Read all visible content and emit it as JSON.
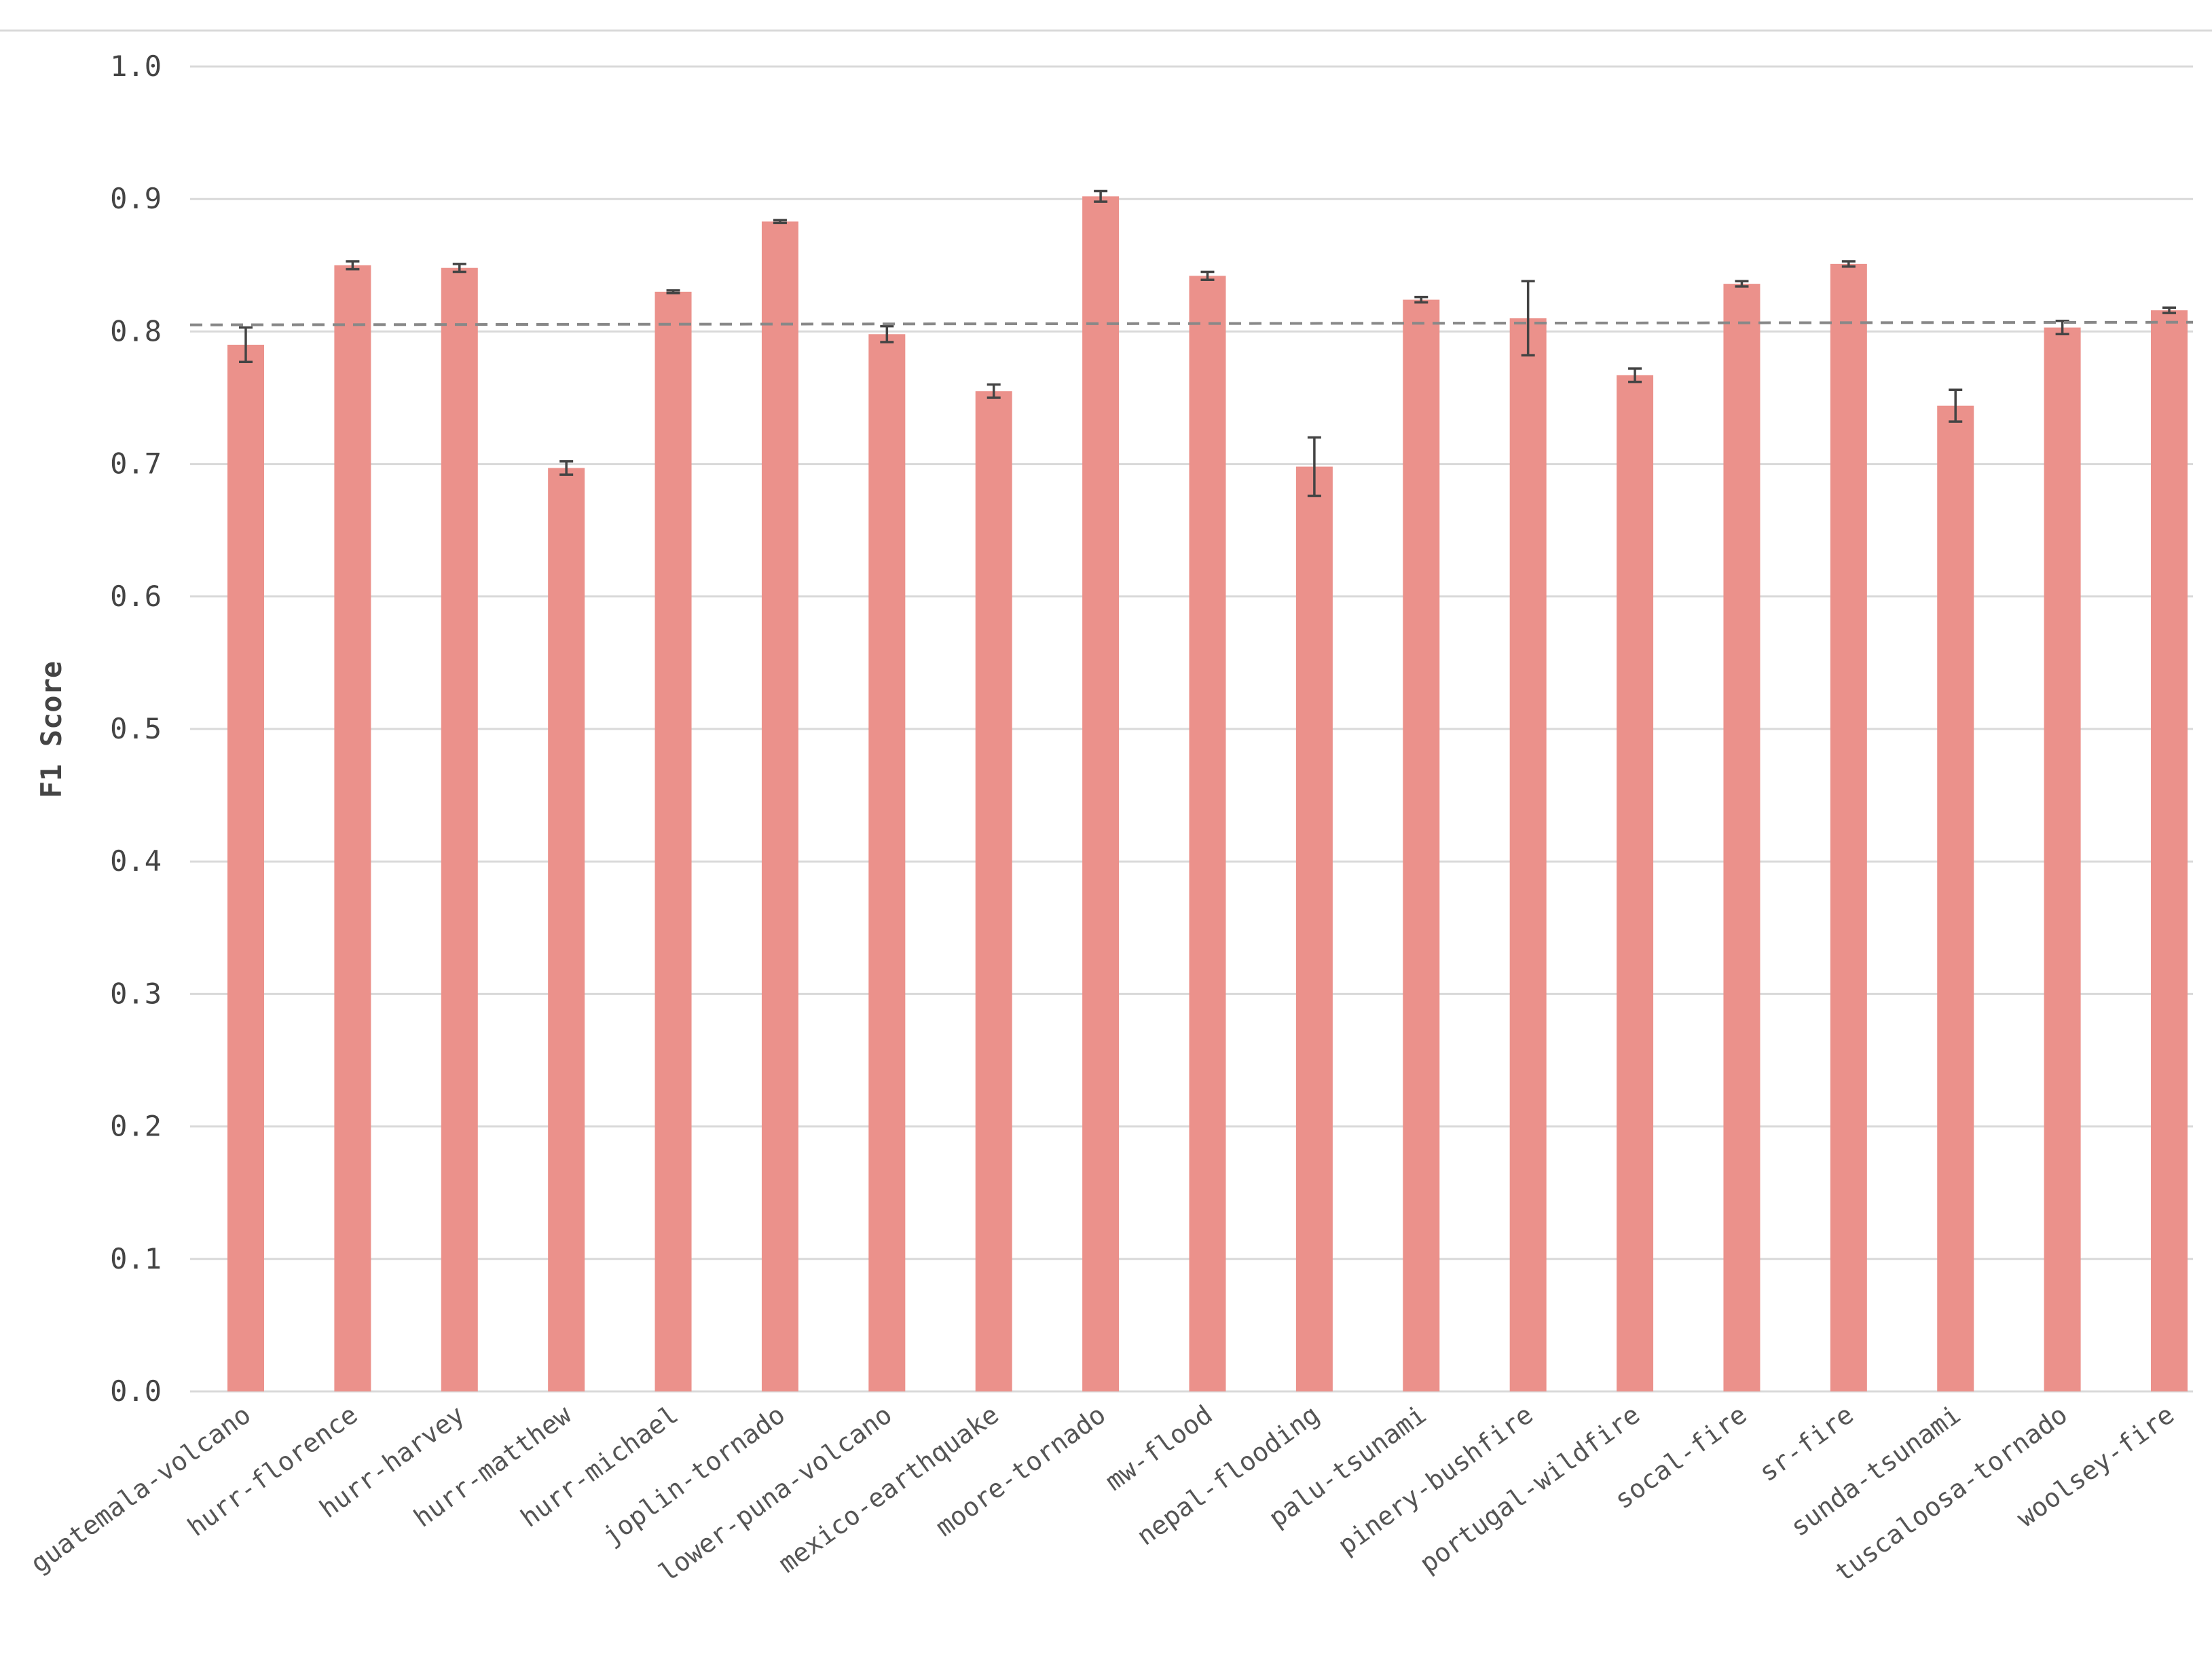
{
  "chart_data": {
    "type": "bar",
    "title": "",
    "xlabel": "",
    "ylabel": "F1 Score",
    "ylim": [
      0,
      1.0
    ],
    "yticks": [
      "0.0",
      "0.1",
      "0.2",
      "0.3",
      "0.4",
      "0.5",
      "0.6",
      "0.7",
      "0.8",
      "0.9",
      "1.0"
    ],
    "grid": true,
    "legend": "none",
    "categories": [
      "guatemala-volcano",
      "hurr-florence",
      "hurr-harvey",
      "hurr-matthew",
      "hurr-michael",
      "joplin-tornado",
      "lower-puna-volcano",
      "mexico-earthquake",
      "moore-tornado",
      "mw-flood",
      "nepal-flooding",
      "palu-tsunami",
      "pinery-bushfire",
      "portugal-wildfire",
      "socal-fire",
      "sr-fire",
      "sunda-tsunami",
      "tuscaloosa-tornado",
      "woolsey-fire"
    ],
    "values": [
      0.79,
      0.85,
      0.848,
      0.697,
      0.83,
      0.883,
      0.798,
      0.755,
      0.902,
      0.842,
      0.698,
      0.824,
      0.81,
      0.767,
      0.836,
      0.851,
      0.744,
      0.803,
      0.816
    ],
    "errors": [
      0.013,
      0.003,
      0.003,
      0.005,
      0.001,
      0.001,
      0.006,
      0.005,
      0.004,
      0.003,
      0.022,
      0.002,
      0.028,
      0.005,
      0.002,
      0.002,
      0.012,
      0.005,
      0.002
    ],
    "trendline": {
      "style": "dashed",
      "start": 0.805,
      "end": 0.807
    },
    "colors": {
      "bar": "#eb918b",
      "error": "#444444",
      "trend": "#888888",
      "grid": "#d9d9d9"
    }
  }
}
